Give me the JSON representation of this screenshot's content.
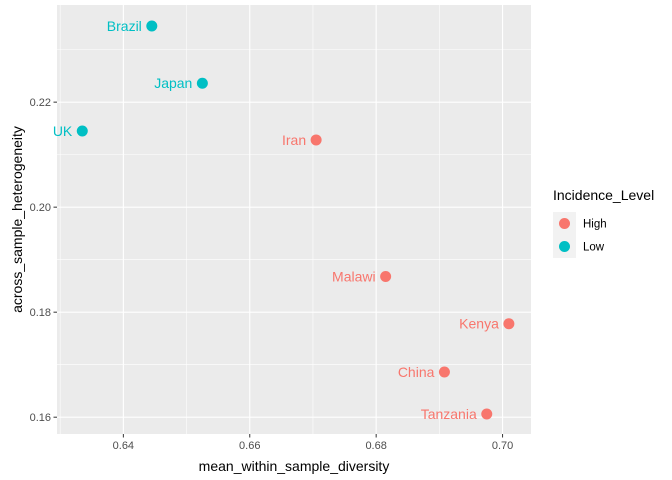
{
  "chart_data": {
    "type": "scatter",
    "xlabel": "mean_within_sample_diversity",
    "ylabel": "across_sample_heterogeneity",
    "xlim": [
      0.6295,
      0.7045
    ],
    "ylim": [
      0.1568,
      0.2385
    ],
    "x_ticks": [
      0.64,
      0.66,
      0.68,
      0.7
    ],
    "x_tick_labels": [
      "0.64",
      "0.66",
      "0.68",
      "0.70"
    ],
    "y_ticks": [
      0.16,
      0.18,
      0.2,
      0.22
    ],
    "y_tick_labels": [
      "0.16",
      "0.18",
      "0.20",
      "0.22"
    ],
    "grid": true,
    "legend_position": "right",
    "legend": {
      "title": "Incidence_Level",
      "entries": [
        {
          "label": "High",
          "color": "#F8766D"
        },
        {
          "label": "Low",
          "color": "#00BFC4"
        }
      ]
    },
    "points": [
      {
        "label": "Brazil",
        "x": 0.6445,
        "y": 0.2345,
        "group": "Low"
      },
      {
        "label": "Japan",
        "x": 0.6525,
        "y": 0.2236,
        "group": "Low"
      },
      {
        "label": "UK",
        "x": 0.6335,
        "y": 0.2145,
        "group": "Low"
      },
      {
        "label": "Iran",
        "x": 0.6705,
        "y": 0.2128,
        "group": "High"
      },
      {
        "label": "Malawi",
        "x": 0.6815,
        "y": 0.1868,
        "group": "High"
      },
      {
        "label": "Kenya",
        "x": 0.701,
        "y": 0.1778,
        "group": "High"
      },
      {
        "label": "China",
        "x": 0.6908,
        "y": 0.1686,
        "group": "High"
      },
      {
        "label": "Tanzania",
        "x": 0.6975,
        "y": 0.1606,
        "group": "High"
      }
    ]
  }
}
